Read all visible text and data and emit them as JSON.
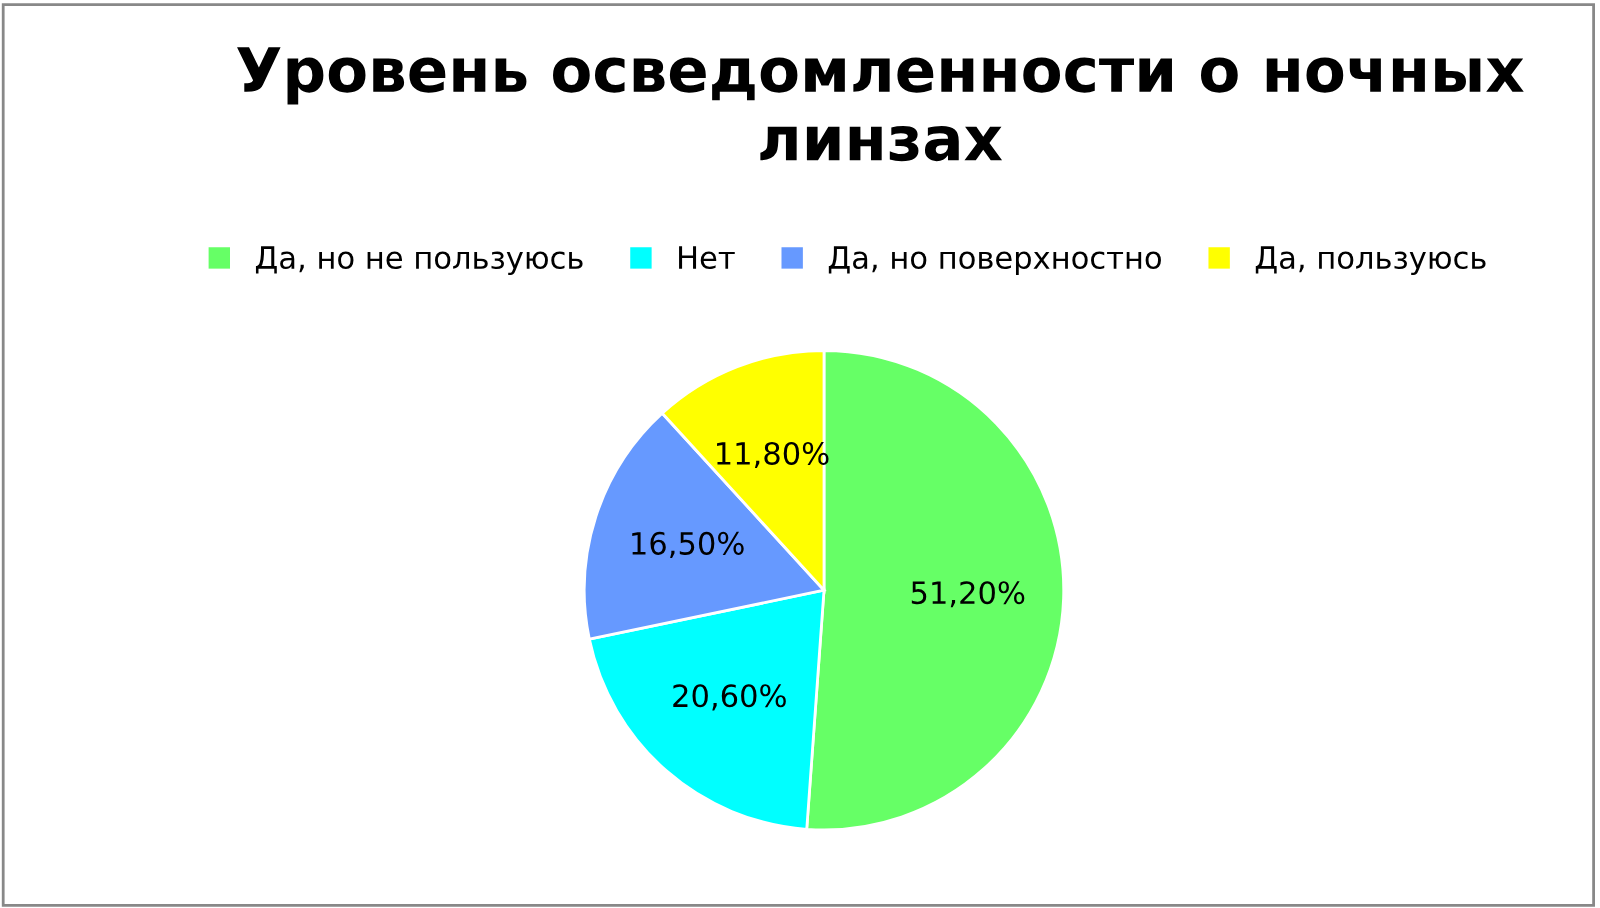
{
  "chart_data": {
    "type": "pie",
    "title": "Уровень осведомленности о ночных линзах",
    "categories": [
      "Да, но не пользуюсь",
      "Нет",
      "Да, но поверхностно",
      "Да, пользуюсь"
    ],
    "values": [
      51.2,
      20.6,
      16.5,
      11.8
    ],
    "colors": [
      "#66ff66",
      "#00ffff",
      "#6699ff",
      "#ffff00"
    ],
    "value_labels": [
      "51,20%",
      "20,60%",
      "16,50%",
      "11,80%"
    ],
    "legend": "top"
  }
}
